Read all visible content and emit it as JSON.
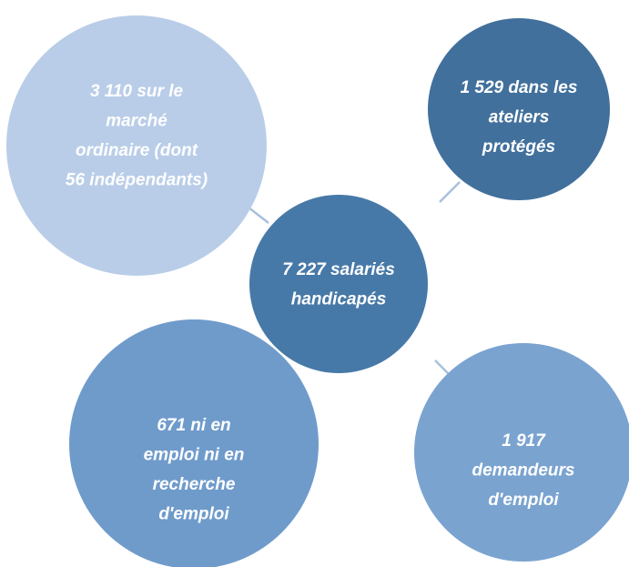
{
  "nodes": [
    {
      "lines": [
        "7 227 salariés",
        "handicapés"
      ]
    },
    {
      "lines": [
        "3 110 sur le",
        "marché",
        "ordinaire (dont",
        "56 indépendants)"
      ]
    },
    {
      "lines": [
        "1 529 dans les",
        "ateliers",
        "protégés"
      ]
    },
    {
      "lines": [
        "671 ni en",
        "emploi ni en",
        "recherche",
        "d'emploi"
      ]
    },
    {
      "lines": [
        "1 917",
        "demandeurs",
        "d'emploi"
      ]
    }
  ]
}
